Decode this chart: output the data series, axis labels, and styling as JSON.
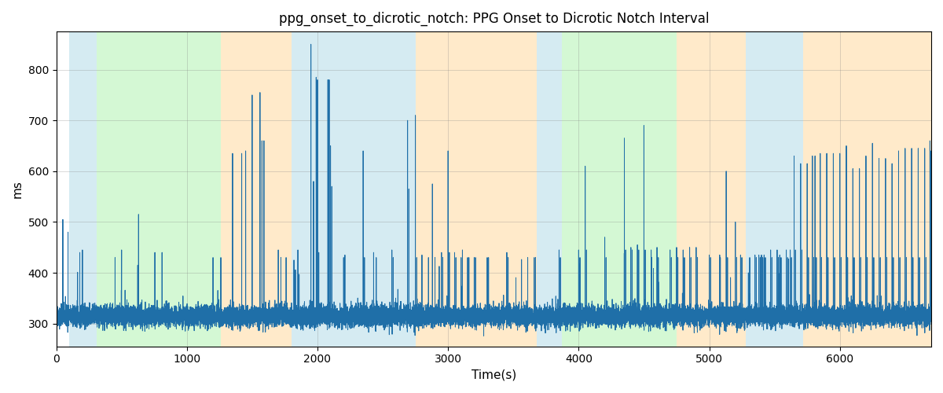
{
  "title": "ppg_onset_to_dicrotic_notch: PPG Onset to Dicrotic Notch Interval",
  "xlabel": "Time(s)",
  "ylabel": "ms",
  "xlim": [
    0,
    6700
  ],
  "ylim": [
    255,
    875
  ],
  "yticks": [
    300,
    400,
    500,
    600,
    700,
    800
  ],
  "xticks": [
    0,
    1000,
    2000,
    3000,
    4000,
    5000,
    6000
  ],
  "background_color": "#ffffff",
  "line_color": "#1f6fa8",
  "line_width": 0.7,
  "title_fontsize": 12,
  "label_fontsize": 11,
  "bands": [
    {
      "xmin": 100,
      "xmax": 310,
      "color": "#add8e6",
      "alpha": 0.5
    },
    {
      "xmin": 310,
      "xmax": 1260,
      "color": "#90ee90",
      "alpha": 0.38
    },
    {
      "xmin": 1260,
      "xmax": 1800,
      "color": "#ffd9a0",
      "alpha": 0.55
    },
    {
      "xmin": 1800,
      "xmax": 2750,
      "color": "#add8e6",
      "alpha": 0.5
    },
    {
      "xmin": 2750,
      "xmax": 3680,
      "color": "#ffd9a0",
      "alpha": 0.55
    },
    {
      "xmin": 3680,
      "xmax": 3870,
      "color": "#add8e6",
      "alpha": 0.5
    },
    {
      "xmin": 3870,
      "xmax": 4750,
      "color": "#90ee90",
      "alpha": 0.38
    },
    {
      "xmin": 4750,
      "xmax": 5280,
      "color": "#ffd9a0",
      "alpha": 0.55
    },
    {
      "xmin": 5280,
      "xmax": 5720,
      "color": "#add8e6",
      "alpha": 0.5
    },
    {
      "xmin": 5720,
      "xmax": 6700,
      "color": "#ffd9a0",
      "alpha": 0.55
    }
  ],
  "seed": 42,
  "n_points": 20000,
  "total_time": 6700,
  "base_value": 315,
  "noise_std": 10,
  "spike_positions": [
    [
      50,
      505
    ],
    [
      90,
      480
    ],
    [
      180,
      440
    ],
    [
      200,
      445
    ],
    [
      450,
      430
    ],
    [
      500,
      445
    ],
    [
      630,
      515
    ],
    [
      755,
      440
    ],
    [
      810,
      440
    ],
    [
      1200,
      430
    ],
    [
      1260,
      430
    ],
    [
      1350,
      635
    ],
    [
      1420,
      635
    ],
    [
      1450,
      640
    ],
    [
      1500,
      750
    ],
    [
      1560,
      755
    ],
    [
      1575,
      660
    ],
    [
      1590,
      660
    ],
    [
      1700,
      445
    ],
    [
      1720,
      430
    ],
    [
      1760,
      430
    ],
    [
      1820,
      425
    ],
    [
      1850,
      445
    ],
    [
      1950,
      850
    ],
    [
      1970,
      580
    ],
    [
      1990,
      785
    ],
    [
      2000,
      780
    ],
    [
      2010,
      440
    ],
    [
      2080,
      780
    ],
    [
      2090,
      780
    ],
    [
      2100,
      650
    ],
    [
      2110,
      570
    ],
    [
      2200,
      430
    ],
    [
      2210,
      435
    ],
    [
      2350,
      640
    ],
    [
      2360,
      430
    ],
    [
      2430,
      440
    ],
    [
      2450,
      430
    ],
    [
      2570,
      445
    ],
    [
      2580,
      430
    ],
    [
      2690,
      700
    ],
    [
      2700,
      565
    ],
    [
      2750,
      710
    ],
    [
      2760,
      430
    ],
    [
      2800,
      435
    ],
    [
      2850,
      430
    ],
    [
      2880,
      575
    ],
    [
      2900,
      430
    ],
    [
      2950,
      440
    ],
    [
      2960,
      430
    ],
    [
      3000,
      640
    ],
    [
      3010,
      440
    ],
    [
      3050,
      440
    ],
    [
      3060,
      430
    ],
    [
      3100,
      430
    ],
    [
      3110,
      445
    ],
    [
      3150,
      430
    ],
    [
      3160,
      430
    ],
    [
      3200,
      430
    ],
    [
      3210,
      430
    ],
    [
      3300,
      430
    ],
    [
      3310,
      430
    ],
    [
      3450,
      440
    ],
    [
      3460,
      430
    ],
    [
      3600,
      345
    ],
    [
      3610,
      430
    ],
    [
      3660,
      430
    ],
    [
      3670,
      430
    ],
    [
      3850,
      445
    ],
    [
      3860,
      430
    ],
    [
      4000,
      445
    ],
    [
      4010,
      430
    ],
    [
      4050,
      610
    ],
    [
      4060,
      445
    ],
    [
      4200,
      470
    ],
    [
      4210,
      430
    ],
    [
      4350,
      665
    ],
    [
      4360,
      445
    ],
    [
      4400,
      450
    ],
    [
      4410,
      445
    ],
    [
      4450,
      455
    ],
    [
      4460,
      445
    ],
    [
      4500,
      690
    ],
    [
      4510,
      445
    ],
    [
      4555,
      445
    ],
    [
      4560,
      430
    ],
    [
      4600,
      450
    ],
    [
      4610,
      430
    ],
    [
      4700,
      445
    ],
    [
      4710,
      430
    ],
    [
      4750,
      450
    ],
    [
      4760,
      430
    ],
    [
      4800,
      445
    ],
    [
      4810,
      430
    ],
    [
      4850,
      450
    ],
    [
      4860,
      430
    ],
    [
      4900,
      450
    ],
    [
      4910,
      430
    ],
    [
      5000,
      435
    ],
    [
      5010,
      430
    ],
    [
      5080,
      435
    ],
    [
      5085,
      430
    ],
    [
      5130,
      600
    ],
    [
      5140,
      430
    ],
    [
      5200,
      500
    ],
    [
      5210,
      430
    ],
    [
      5240,
      435
    ],
    [
      5250,
      430
    ],
    [
      5300,
      400
    ],
    [
      5310,
      430
    ],
    [
      5350,
      435
    ],
    [
      5360,
      430
    ],
    [
      5380,
      435
    ],
    [
      5390,
      430
    ],
    [
      5400,
      435
    ],
    [
      5410,
      430
    ],
    [
      5420,
      435
    ],
    [
      5430,
      430
    ],
    [
      5470,
      445
    ],
    [
      5480,
      430
    ],
    [
      5520,
      445
    ],
    [
      5530,
      430
    ],
    [
      5540,
      435
    ],
    [
      5550,
      430
    ],
    [
      5590,
      445
    ],
    [
      5600,
      430
    ],
    [
      5620,
      445
    ],
    [
      5630,
      430
    ],
    [
      5650,
      630
    ],
    [
      5660,
      445
    ],
    [
      5700,
      615
    ],
    [
      5710,
      445
    ],
    [
      5750,
      615
    ],
    [
      5760,
      430
    ],
    [
      5790,
      630
    ],
    [
      5800,
      430
    ],
    [
      5810,
      630
    ],
    [
      5820,
      430
    ],
    [
      5850,
      635
    ],
    [
      5860,
      430
    ],
    [
      5900,
      635
    ],
    [
      5910,
      430
    ],
    [
      5950,
      635
    ],
    [
      5960,
      430
    ],
    [
      6000,
      635
    ],
    [
      6010,
      430
    ],
    [
      6050,
      650
    ],
    [
      6060,
      430
    ],
    [
      6100,
      605
    ],
    [
      6110,
      430
    ],
    [
      6150,
      605
    ],
    [
      6160,
      430
    ],
    [
      6200,
      630
    ],
    [
      6210,
      430
    ],
    [
      6250,
      655
    ],
    [
      6260,
      430
    ],
    [
      6300,
      625
    ],
    [
      6310,
      430
    ],
    [
      6350,
      625
    ],
    [
      6360,
      430
    ],
    [
      6400,
      615
    ],
    [
      6410,
      430
    ],
    [
      6450,
      640
    ],
    [
      6460,
      430
    ],
    [
      6500,
      645
    ],
    [
      6510,
      430
    ],
    [
      6550,
      645
    ],
    [
      6560,
      430
    ],
    [
      6600,
      645
    ],
    [
      6610,
      430
    ],
    [
      6650,
      645
    ],
    [
      6660,
      430
    ],
    [
      6690,
      660
    ],
    [
      6695,
      640
    ]
  ]
}
